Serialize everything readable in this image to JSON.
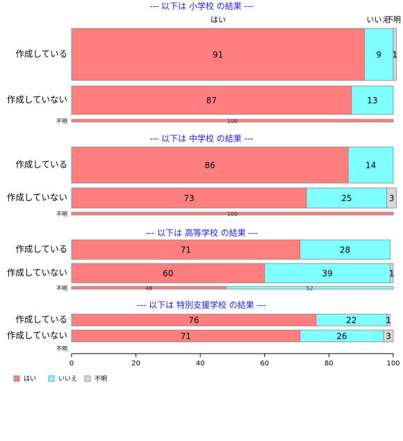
{
  "chart_data": {
    "type": "bar",
    "orientation": "horizontal",
    "stacked": true,
    "categories": [
      "はい",
      "いいえ",
      "不明"
    ],
    "colors": [
      "#ff7f7f",
      "#80ffff",
      "#d8d8d8"
    ],
    "xlim": [
      0,
      100
    ],
    "xticks": [
      "0",
      "20",
      "40",
      "60",
      "80",
      "100"
    ],
    "legend": {
      "position": "bottom-left",
      "entries": [
        "はい",
        "いいえ",
        "不明"
      ]
    },
    "groups": [
      {
        "title": "--- 以下は 小学校 の結果 ---",
        "rows": [
          {
            "label": "作成している",
            "values": [
              91,
              9,
              1
            ]
          },
          {
            "label": "作成していない",
            "values": [
              87,
              13,
              0
            ]
          },
          {
            "label": "不明",
            "values": [
              100,
              0,
              0
            ]
          }
        ]
      },
      {
        "title": "--- 以下は 中学校 の結果 ---",
        "rows": [
          {
            "label": "作成している",
            "values": [
              86,
              14,
              0
            ]
          },
          {
            "label": "作成していない",
            "values": [
              73,
              25,
              3
            ]
          },
          {
            "label": "不明",
            "values": [
              100,
              0,
              0
            ]
          }
        ]
      },
      {
        "title": "--- 以下は 高等学校 の結果 ---",
        "rows": [
          {
            "label": "作成している",
            "values": [
              71,
              28,
              0
            ]
          },
          {
            "label": "作成していない",
            "values": [
              60,
              39,
              1
            ]
          },
          {
            "label": "不明",
            "values": [
              48,
              52,
              0
            ]
          }
        ]
      },
      {
        "title": "--- 以下は 特別支援学校 の結果 ---",
        "rows": [
          {
            "label": "作成している",
            "values": [
              76,
              22,
              1
            ]
          },
          {
            "label": "作成していない",
            "values": [
              71,
              26,
              3
            ]
          },
          {
            "label": "不明",
            "values": [
              0,
              0,
              0
            ]
          }
        ]
      }
    ]
  }
}
